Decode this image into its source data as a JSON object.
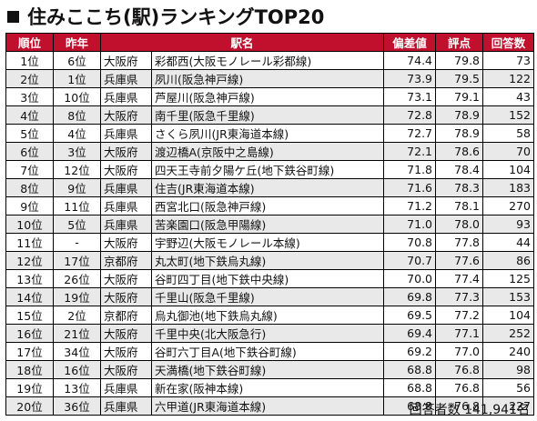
{
  "title": "住みここち(駅)ランキングTOP20",
  "columns": [
    "順位",
    "昨年",
    "",
    "駅名",
    "偏差値",
    "評点",
    "回答数"
  ],
  "rows": [
    [
      "1位",
      "6位",
      "大阪府",
      "彩都西(大阪モノレール彩都線)",
      "74.4",
      "79.8",
      "73"
    ],
    [
      "2位",
      "1位",
      "兵庫県",
      "夙川(阪急神戸線)",
      "73.9",
      "79.5",
      "122"
    ],
    [
      "3位",
      "10位",
      "兵庫県",
      "芦屋川(阪急神戸線)",
      "73.1",
      "79.1",
      "43"
    ],
    [
      "4位",
      "8位",
      "大阪府",
      "南千里(阪急千里線)",
      "72.8",
      "78.9",
      "152"
    ],
    [
      "5位",
      "4位",
      "兵庫県",
      "さくら夙川(JR東海道本線)",
      "72.7",
      "78.9",
      "58"
    ],
    [
      "6位",
      "3位",
      "大阪府",
      "渡辺橋A(京阪中之島線)",
      "72.1",
      "78.6",
      "70"
    ],
    [
      "7位",
      "12位",
      "大阪府",
      "四天王寺前夕陽ケ丘(地下鉄谷町線)",
      "71.8",
      "78.4",
      "104"
    ],
    [
      "8位",
      "9位",
      "兵庫県",
      "住吉(JR東海道本線)",
      "71.6",
      "78.3",
      "183"
    ],
    [
      "9位",
      "11位",
      "兵庫県",
      "西宮北口(阪急神戸線)",
      "71.2",
      "78.1",
      "270"
    ],
    [
      "10位",
      "5位",
      "兵庫県",
      "苦楽園口(阪急甲陽線)",
      "71.0",
      "78.0",
      "93"
    ],
    [
      "11位",
      "-",
      "大阪府",
      "宇野辺(大阪モノレール本線)",
      "70.8",
      "77.8",
      "44"
    ],
    [
      "12位",
      "17位",
      "京都府",
      "丸太町(地下鉄烏丸線)",
      "70.7",
      "77.6",
      "86"
    ],
    [
      "13位",
      "26位",
      "大阪府",
      "谷町四丁目(地下鉄中央線)",
      "70.0",
      "77.4",
      "125"
    ],
    [
      "14位",
      "19位",
      "大阪府",
      "千里山(阪急千里線)",
      "69.8",
      "77.3",
      "153"
    ],
    [
      "15位",
      "2位",
      "京都府",
      "烏丸御池(地下鉄烏丸線)",
      "69.5",
      "77.2",
      "104"
    ],
    [
      "16位",
      "21位",
      "大阪府",
      "千里中央(北大阪急行)",
      "69.4",
      "77.1",
      "252"
    ],
    [
      "17位",
      "34位",
      "大阪府",
      "谷町六丁目A(地下鉄谷町線)",
      "69.2",
      "77.0",
      "240"
    ],
    [
      "18位",
      "16位",
      "大阪府",
      "天満橋(地下鉄谷町線)",
      "68.8",
      "76.8",
      "98"
    ],
    [
      "19位",
      "13位",
      "兵庫県",
      "新在家(阪神本線)",
      "68.8",
      "76.8",
      "56"
    ],
    [
      "20位",
      "36位",
      "兵庫県",
      "六甲道(JR東海道本線)",
      "68.8",
      "76.8",
      "227"
    ]
  ],
  "footer": "回答者数 141,941名",
  "colors": {
    "header_bg": "#c0102e",
    "header_text": "#ffffff",
    "alt_row": "#e9e9e9"
  }
}
